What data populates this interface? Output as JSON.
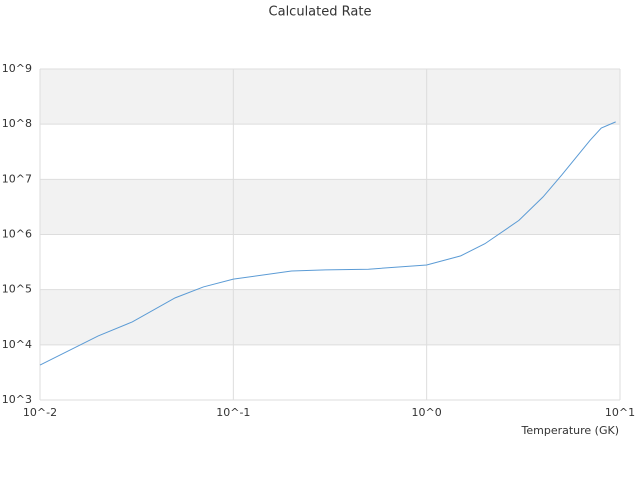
{
  "chart_data": {
    "type": "line",
    "title": "Calculated Rate",
    "x_label": "Temperature (GK)",
    "log_x": true,
    "log_y": true,
    "grid": true,
    "xlim": [
      0.01,
      10
    ],
    "ylim": [
      1000,
      1000000000
    ],
    "xticks": [
      {
        "value": 0.01,
        "label": "10^-2"
      },
      {
        "value": 0.1,
        "label": "10^-1"
      },
      {
        "value": 1,
        "label": "10^0"
      },
      {
        "value": 10,
        "label": "10^1"
      }
    ],
    "yticks": [
      {
        "value": 1000,
        "label": "10^3"
      },
      {
        "value": 10000,
        "label": "10^4"
      },
      {
        "value": 100000,
        "label": "10^5"
      },
      {
        "value": 1000000,
        "label": "10^6"
      },
      {
        "value": 10000000,
        "label": "10^7"
      },
      {
        "value": 100000000,
        "label": "10^8"
      },
      {
        "value": 1000000000,
        "label": "10^9"
      }
    ],
    "x": [
      0.01,
      0.02,
      0.03,
      0.05,
      0.07,
      0.1,
      0.2,
      0.3,
      0.5,
      1,
      1.5,
      2,
      3,
      4,
      5,
      7,
      8,
      9.5
    ],
    "series": [
      {
        "color": "#5b9bd5",
        "values": [
          4300,
          14500,
          26000,
          71000,
          112000,
          155000,
          218000,
          229000,
          235000,
          280000,
          410000,
          680000,
          1800000,
          4800000,
          12000000,
          51000000,
          85000000,
          110000000
        ]
      }
    ]
  }
}
